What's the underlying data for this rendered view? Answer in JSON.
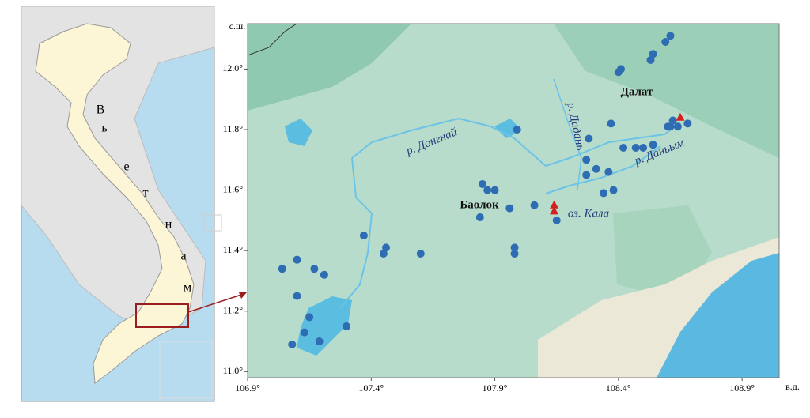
{
  "chart_data": {
    "type": "scatter",
    "y_label": "с.ш.",
    "x_label": "в.д.",
    "xlim": [
      106.9,
      109.05
    ],
    "ylim": [
      10.98,
      12.15
    ],
    "xticks": [
      {
        "value": 106.9,
        "label": "106.9°"
      },
      {
        "value": 107.4,
        "label": "107.4°"
      },
      {
        "value": 107.9,
        "label": "107.9°"
      },
      {
        "value": 108.4,
        "label": "108.4°"
      },
      {
        "value": 108.9,
        "label": "108.9°"
      }
    ],
    "yticks": [
      {
        "value": 11.0,
        "label": "11.0°"
      },
      {
        "value": 11.2,
        "label": "11.2°"
      },
      {
        "value": 11.4,
        "label": "11.4°"
      },
      {
        "value": 11.6,
        "label": "11.6°"
      },
      {
        "value": 11.8,
        "label": "11.8°"
      },
      {
        "value": 12.0,
        "label": "12.0°"
      }
    ],
    "annotations": [
      "Далат",
      "Баолок",
      "р. Донгнай",
      "р. Дадань",
      "р. Даньым",
      "оз. Кала"
    ],
    "series": [
      {
        "color": "#2e6db4",
        "marker": "circle",
        "x": [
          108.61,
          108.59,
          108.54,
          108.53,
          108.41,
          108.4,
          108.68,
          108.64,
          108.61,
          108.62,
          108.6,
          108.37,
          108.42,
          108.47,
          108.5,
          108.54,
          108.28,
          108.27,
          108.31,
          108.36,
          108.27,
          108.38,
          108.34,
          107.99,
          107.85,
          107.87,
          107.9,
          107.96,
          108.06,
          107.84,
          108.15,
          107.37,
          107.46,
          107.45,
          107.6,
          107.98,
          107.98,
          107.1,
          107.04,
          107.17,
          107.21,
          107.1,
          107.15,
          107.3,
          107.13,
          107.19,
          107.08
        ],
        "y": [
          12.11,
          12.09,
          12.05,
          12.03,
          12.0,
          11.99,
          11.82,
          11.81,
          11.81,
          11.83,
          11.81,
          11.82,
          11.74,
          11.74,
          11.74,
          11.75,
          11.77,
          11.7,
          11.67,
          11.66,
          11.65,
          11.6,
          11.59,
          11.8,
          11.62,
          11.6,
          11.6,
          11.54,
          11.55,
          11.51,
          11.5,
          11.45,
          11.41,
          11.39,
          11.39,
          11.41,
          11.39,
          11.37,
          11.34,
          11.34,
          11.32,
          11.25,
          11.18,
          11.15,
          11.13,
          11.1,
          11.09
        ]
      },
      {
        "color": "#d42020",
        "marker": "triangle",
        "x": [
          108.14,
          108.14,
          108.65
        ],
        "y": [
          11.55,
          11.53,
          11.84
        ]
      }
    ]
  },
  "inset": {
    "country_letters": [
      "В",
      "ь",
      "е",
      "т",
      "н",
      "а",
      "м"
    ]
  }
}
